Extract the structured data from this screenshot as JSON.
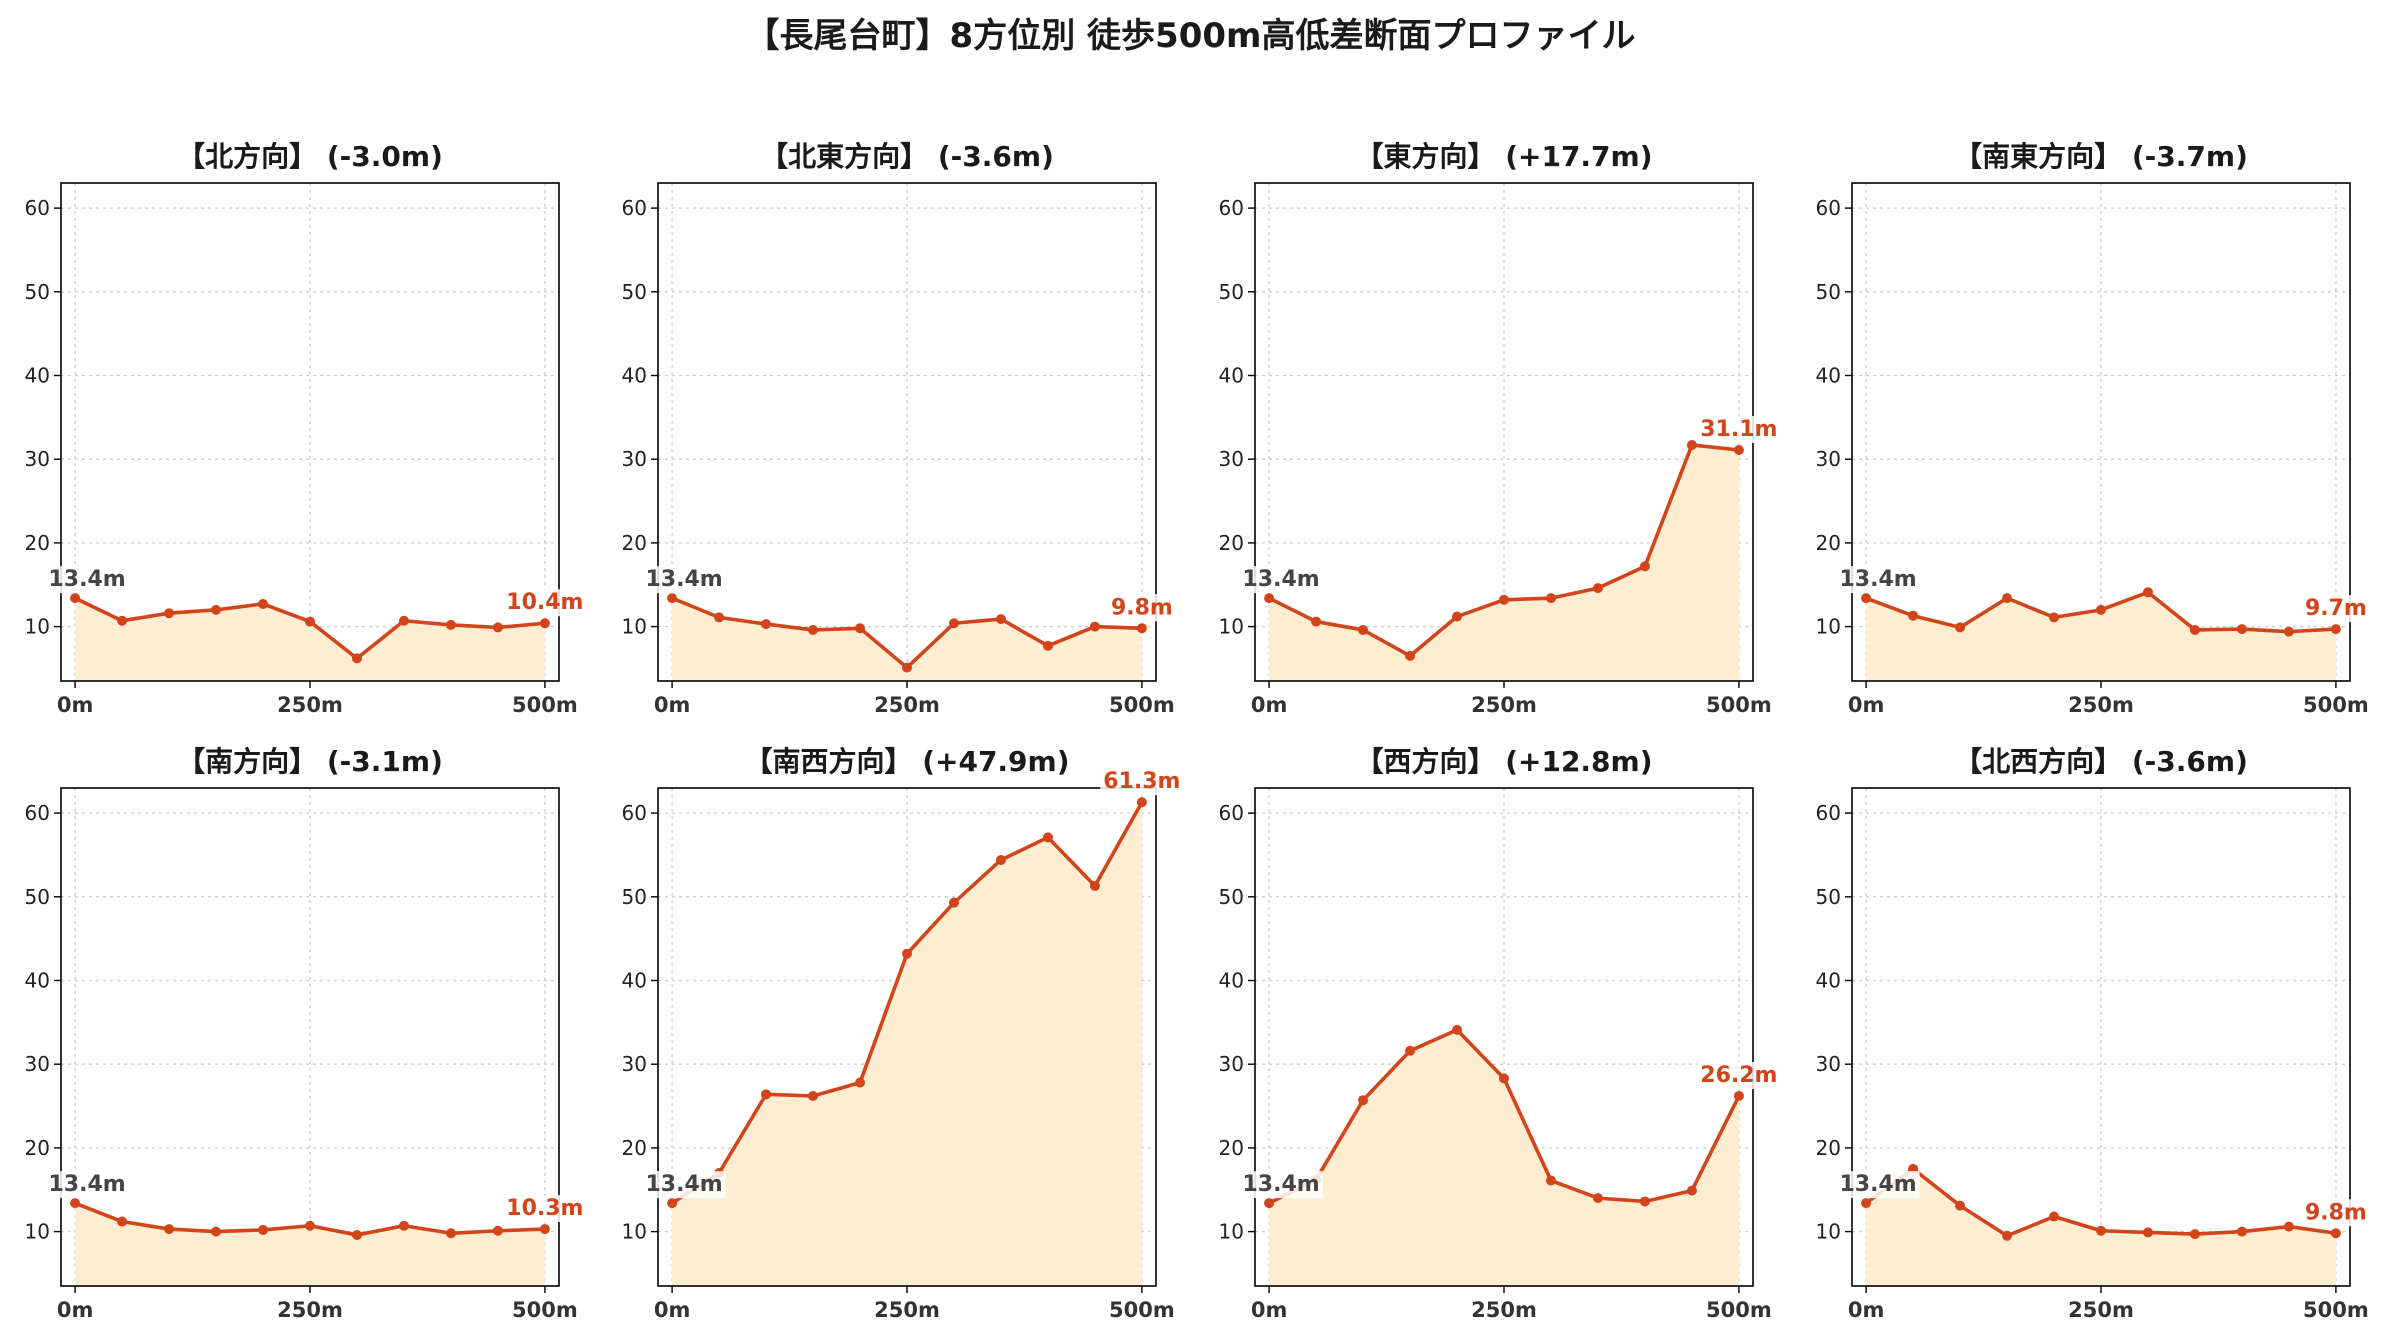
{
  "title": "【長尾台町】8方位別 徒歩500m高低差断面プロファイル",
  "colors": {
    "line": "#d2441a",
    "fill": "#ffedd2",
    "grid": "#cccccc",
    "start_label": "#444444"
  },
  "chart_data": [
    {
      "type": "area",
      "title": "【北方向】 (-3.0m)",
      "x": [
        0,
        50,
        100,
        150,
        200,
        250,
        300,
        350,
        400,
        450,
        500
      ],
      "values": [
        13.4,
        10.7,
        11.6,
        12.0,
        12.7,
        10.6,
        6.2,
        10.7,
        10.2,
        9.9,
        10.4
      ],
      "start_label": "13.4m",
      "end_label": "10.4m",
      "xticks": [
        "0m",
        "250m",
        "500m"
      ],
      "yticks": [
        10,
        20,
        30,
        40,
        50,
        60
      ],
      "ylim": [
        3.5,
        63
      ]
    },
    {
      "type": "area",
      "title": "【北東方向】 (-3.6m)",
      "x": [
        0,
        50,
        100,
        150,
        200,
        250,
        300,
        350,
        400,
        450,
        500
      ],
      "values": [
        13.4,
        11.1,
        10.3,
        9.6,
        9.8,
        5.1,
        10.4,
        10.9,
        7.7,
        10.0,
        9.8
      ],
      "start_label": "13.4m",
      "end_label": "9.8m",
      "xticks": [
        "0m",
        "250m",
        "500m"
      ],
      "yticks": [
        10,
        20,
        30,
        40,
        50,
        60
      ],
      "ylim": [
        3.5,
        63
      ]
    },
    {
      "type": "area",
      "title": "【東方向】 (+17.7m)",
      "x": [
        0,
        50,
        100,
        150,
        200,
        250,
        300,
        350,
        400,
        450,
        500
      ],
      "values": [
        13.4,
        10.6,
        9.6,
        6.5,
        11.2,
        13.2,
        13.4,
        14.6,
        17.2,
        31.7,
        31.1
      ],
      "start_label": "13.4m",
      "end_label": "31.1m",
      "xticks": [
        "0m",
        "250m",
        "500m"
      ],
      "yticks": [
        10,
        20,
        30,
        40,
        50,
        60
      ],
      "ylim": [
        3.5,
        63
      ]
    },
    {
      "type": "area",
      "title": "【南東方向】 (-3.7m)",
      "x": [
        0,
        50,
        100,
        150,
        200,
        250,
        300,
        350,
        400,
        450,
        500
      ],
      "values": [
        13.4,
        11.3,
        9.9,
        13.4,
        11.1,
        12.0,
        14.1,
        9.6,
        9.7,
        9.4,
        9.7
      ],
      "start_label": "13.4m",
      "end_label": "9.7m",
      "xticks": [
        "0m",
        "250m",
        "500m"
      ],
      "yticks": [
        10,
        20,
        30,
        40,
        50,
        60
      ],
      "ylim": [
        3.5,
        63
      ]
    },
    {
      "type": "area",
      "title": "【南方向】 (-3.1m)",
      "x": [
        0,
        50,
        100,
        150,
        200,
        250,
        300,
        350,
        400,
        450,
        500
      ],
      "values": [
        13.4,
        11.2,
        10.3,
        10.0,
        10.2,
        10.7,
        9.6,
        10.7,
        9.8,
        10.1,
        10.3
      ],
      "start_label": "13.4m",
      "end_label": "10.3m",
      "xticks": [
        "0m",
        "250m",
        "500m"
      ],
      "yticks": [
        10,
        20,
        30,
        40,
        50,
        60
      ],
      "ylim": [
        3.5,
        63
      ]
    },
    {
      "type": "area",
      "title": "【南西方向】 (+47.9m)",
      "x": [
        0,
        50,
        100,
        150,
        200,
        250,
        300,
        350,
        400,
        450,
        500
      ],
      "values": [
        13.4,
        17.0,
        26.4,
        26.2,
        27.8,
        43.2,
        49.3,
        54.4,
        57.1,
        51.3,
        61.3
      ],
      "start_label": "13.4m",
      "end_label": "61.3m",
      "xticks": [
        "0m",
        "250m",
        "500m"
      ],
      "yticks": [
        10,
        20,
        30,
        40,
        50,
        60
      ],
      "ylim": [
        3.5,
        63
      ]
    },
    {
      "type": "area",
      "title": "【西方向】 (+12.8m)",
      "x": [
        0,
        50,
        100,
        150,
        200,
        250,
        300,
        350,
        400,
        450,
        500
      ],
      "values": [
        13.4,
        16.2,
        25.7,
        31.6,
        34.1,
        28.3,
        16.1,
        14.0,
        13.6,
        14.9,
        26.2
      ],
      "start_label": "13.4m",
      "end_label": "26.2m",
      "xticks": [
        "0m",
        "250m",
        "500m"
      ],
      "yticks": [
        10,
        20,
        30,
        40,
        50,
        60
      ],
      "ylim": [
        3.5,
        63
      ]
    },
    {
      "type": "area",
      "title": "【北西方向】 (-3.6m)",
      "x": [
        0,
        50,
        100,
        150,
        200,
        250,
        300,
        350,
        400,
        450,
        500
      ],
      "values": [
        13.4,
        17.5,
        13.1,
        9.5,
        11.8,
        10.1,
        9.9,
        9.7,
        10.0,
        10.6,
        9.8
      ],
      "start_label": "13.4m",
      "end_label": "9.8m",
      "xticks": [
        "0m",
        "250m",
        "500m"
      ],
      "yticks": [
        10,
        20,
        30,
        40,
        50,
        60
      ],
      "ylim": [
        3.5,
        63
      ]
    }
  ]
}
